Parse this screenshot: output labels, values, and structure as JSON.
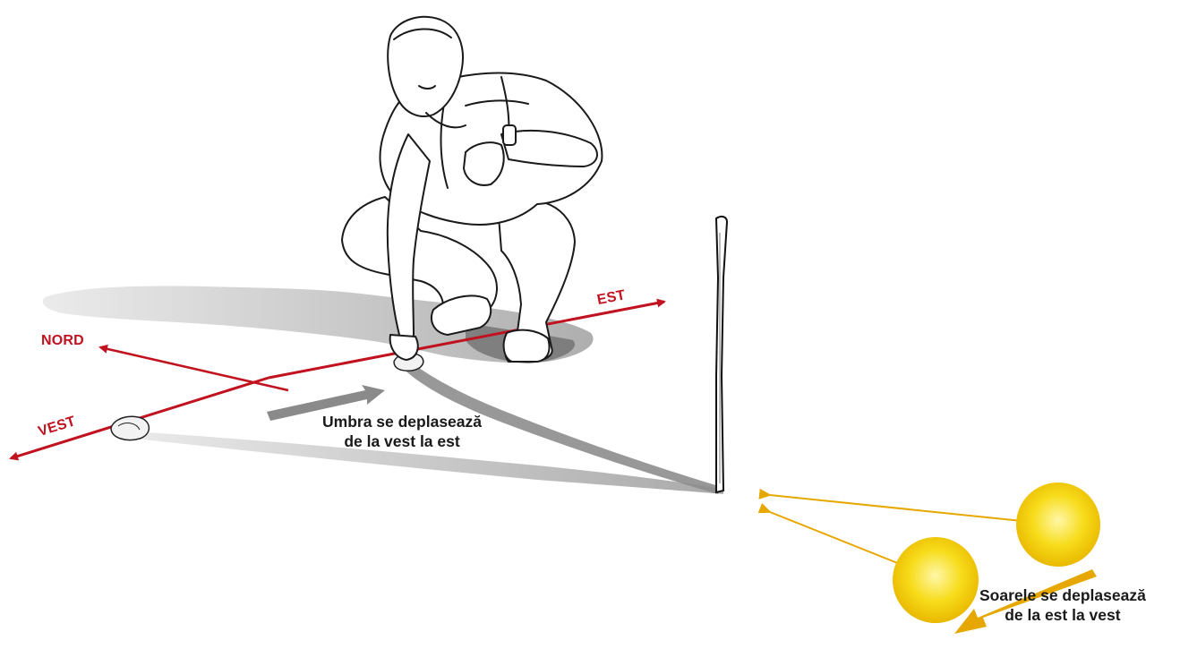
{
  "directions": {
    "north": "NORD",
    "east": "EST",
    "west": "VEST"
  },
  "captions": {
    "shadow_line1": "Umbra se deplasează",
    "shadow_line2": "de la vest la est",
    "sun_line1": "Soarele se deplasează",
    "sun_line2": "de la est la vest"
  },
  "colors": {
    "compass": "#c1121f",
    "sun": "#f6d800",
    "sun_ray": "#e6a800",
    "shadow": "#8a8a8a",
    "text": "#1a1a1a"
  },
  "icons": {
    "person": "crouching-man-illustration",
    "stick": "vertical-stick",
    "marker": "stone-marker-icon",
    "sun": "sun-icon"
  }
}
